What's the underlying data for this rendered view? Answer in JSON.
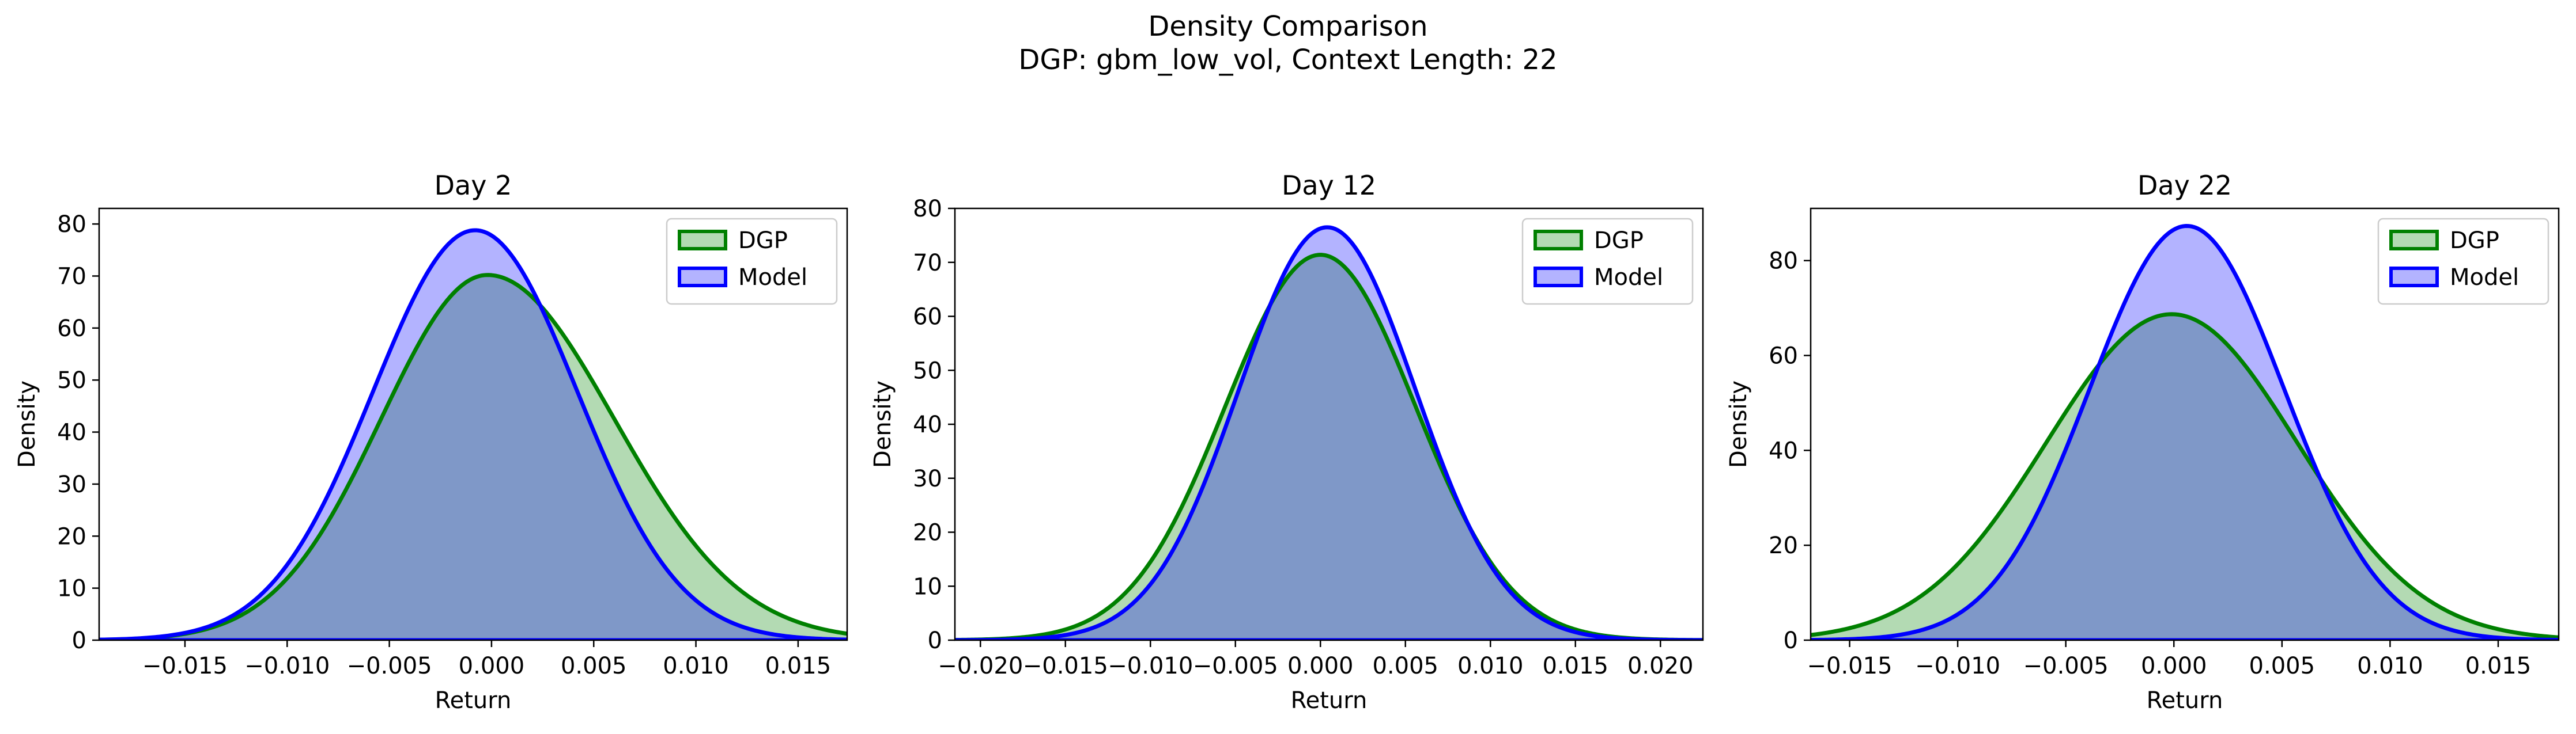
{
  "figure": {
    "suptitle_line1": "Density Comparison",
    "suptitle_line2": "DGP: gbm_low_vol, Context Length: 22"
  },
  "colors": {
    "dgp_line": "#008000",
    "dgp_fill": "#b3dab3",
    "model_line": "#0000ff",
    "model_fill": "#b3b3ff",
    "overlap_fill": "#7f98c8"
  },
  "chart_data": [
    {
      "type": "area",
      "title": "Day 2",
      "xlabel": "Return",
      "ylabel": "Density",
      "xlim": [
        -0.0192,
        0.0174
      ],
      "ylim": [
        0,
        83
      ],
      "xticks": [
        -0.015,
        -0.01,
        -0.005,
        0.0,
        0.005,
        0.01,
        0.015
      ],
      "xtick_labels": [
        "−0.015",
        "−0.010",
        "−0.005",
        "0.000",
        "0.005",
        "0.010",
        "0.015"
      ],
      "yticks": [
        0,
        10,
        20,
        30,
        40,
        50,
        60,
        70,
        80
      ],
      "ytick_labels": [
        "0",
        "10",
        "20",
        "30",
        "40",
        "50",
        "60",
        "70",
        "80"
      ],
      "legend_position": "top-right",
      "series": [
        {
          "name": "DGP",
          "peak_x": -0.0002,
          "peak_y": 70.2,
          "left_width": 0.0052,
          "right_width": 0.0062
        },
        {
          "name": "Model",
          "peak_x": -0.0008,
          "peak_y": 78.8,
          "left_width": 0.005,
          "right_width": 0.005
        }
      ]
    },
    {
      "type": "area",
      "title": "Day 12",
      "xlabel": "Return",
      "ylabel": "Density",
      "xlim": [
        -0.0215,
        0.0225
      ],
      "ylim": [
        0,
        80
      ],
      "xticks": [
        -0.02,
        -0.015,
        -0.01,
        -0.005,
        0.0,
        0.005,
        0.01,
        0.015,
        0.02
      ],
      "xtick_labels": [
        "−0.020",
        "−0.015",
        "−0.010",
        "−0.005",
        "0.000",
        "0.005",
        "0.010",
        "0.015",
        "0.020"
      ],
      "yticks": [
        0,
        10,
        20,
        30,
        40,
        50,
        60,
        70,
        80
      ],
      "ytick_labels": [
        "0",
        "10",
        "20",
        "30",
        "40",
        "50",
        "60",
        "70",
        "80"
      ],
      "legend_position": "top-right",
      "series": [
        {
          "name": "DGP",
          "peak_x": 0.0,
          "peak_y": 71.4,
          "left_width": 0.0056,
          "right_width": 0.0056
        },
        {
          "name": "Model",
          "peak_x": 0.0004,
          "peak_y": 76.5,
          "left_width": 0.0052,
          "right_width": 0.0052
        }
      ]
    },
    {
      "type": "area",
      "title": "Day 22",
      "xlabel": "Return",
      "ylabel": "Density",
      "xlim": [
        -0.0168,
        0.0178
      ],
      "ylim": [
        0,
        91
      ],
      "xticks": [
        -0.015,
        -0.01,
        -0.005,
        0.0,
        0.005,
        0.01,
        0.015
      ],
      "xtick_labels": [
        "−0.015",
        "−0.010",
        "−0.005",
        "0.000",
        "0.005",
        "0.010",
        "0.015"
      ],
      "yticks": [
        0,
        20,
        40,
        60,
        80
      ],
      "ytick_labels": [
        "0",
        "20",
        "40",
        "60",
        "80"
      ],
      "legend_position": "top-right",
      "series": [
        {
          "name": "DGP",
          "peak_x": -0.0001,
          "peak_y": 68.7,
          "left_width": 0.0058,
          "right_width": 0.0058
        },
        {
          "name": "Model",
          "peak_x": 0.0006,
          "peak_y": 87.3,
          "left_width": 0.0045,
          "right_width": 0.0045
        }
      ]
    }
  ]
}
